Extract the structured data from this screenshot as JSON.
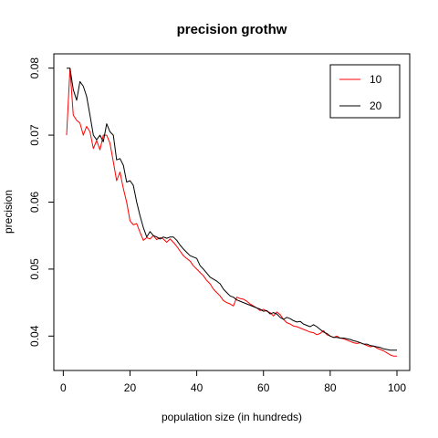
{
  "chart_data": {
    "type": "line",
    "title": "precision grothw",
    "xlabel": "population size (in hundreds)",
    "ylabel": "precision",
    "xlim": [
      1,
      100
    ],
    "ylim": [
      0.0365,
      0.0805
    ],
    "xticks": [
      0,
      20,
      40,
      60,
      80,
      100
    ],
    "xtick_labels": [
      "0",
      "20",
      "40",
      "60",
      "80",
      "100"
    ],
    "yticks": [
      0.04,
      0.05,
      0.06,
      0.07,
      0.08
    ],
    "ytick_labels": [
      "0.04",
      "0.05",
      "0.06",
      "0.07",
      "0.08"
    ],
    "grid": false,
    "legend_position": "top-right",
    "series": [
      {
        "name": "10",
        "color": "#ff0000",
        "x": [
          1,
          2,
          3,
          4,
          5,
          6,
          7,
          8,
          9,
          10,
          11,
          12,
          13,
          14,
          15,
          16,
          17,
          18,
          19,
          20,
          21,
          22,
          23,
          24,
          25,
          26,
          27,
          28,
          29,
          30,
          31,
          32,
          33,
          34,
          35,
          36,
          37,
          38,
          39,
          40,
          41,
          42,
          43,
          44,
          45,
          46,
          47,
          48,
          49,
          50,
          51,
          52,
          53,
          54,
          55,
          56,
          57,
          58,
          59,
          60,
          61,
          62,
          63,
          64,
          65,
          66,
          67,
          68,
          69,
          70,
          71,
          72,
          73,
          74,
          75,
          76,
          77,
          78,
          79,
          80,
          81,
          82,
          83,
          84,
          85,
          86,
          87,
          88,
          89,
          90,
          91,
          92,
          93,
          94,
          95,
          96,
          97,
          98,
          99,
          100
        ],
        "y": [
          0.07,
          0.08,
          0.073,
          0.0722,
          0.0718,
          0.07,
          0.0713,
          0.0705,
          0.068,
          0.0692,
          0.0678,
          0.07,
          0.07,
          0.0688,
          0.066,
          0.0632,
          0.0645,
          0.062,
          0.06,
          0.0572,
          0.0566,
          0.0568,
          0.0555,
          0.0543,
          0.0547,
          0.0545,
          0.055,
          0.0544,
          0.0547,
          0.0545,
          0.054,
          0.0545,
          0.054,
          0.0534,
          0.0527,
          0.052,
          0.0516,
          0.0512,
          0.0505,
          0.05,
          0.0495,
          0.049,
          0.0483,
          0.0478,
          0.047,
          0.0465,
          0.046,
          0.0453,
          0.045,
          0.0448,
          0.0445,
          0.0458,
          0.0456,
          0.0455,
          0.0452,
          0.0448,
          0.0445,
          0.0442,
          0.0438,
          0.044,
          0.0437,
          0.0435,
          0.043,
          0.0436,
          0.0432,
          0.0425,
          0.042,
          0.0418,
          0.0415,
          0.0414,
          0.0412,
          0.041,
          0.0408,
          0.0406,
          0.0405,
          0.0402,
          0.0404,
          0.0408,
          0.0402,
          0.04,
          0.0398,
          0.04,
          0.0397,
          0.0396,
          0.0394,
          0.0392,
          0.039,
          0.0389,
          0.039,
          0.0388,
          0.0386,
          0.0384,
          0.0385,
          0.0382,
          0.038,
          0.0378,
          0.0375,
          0.0372,
          0.037,
          0.037
        ]
      },
      {
        "name": "20",
        "color": "#000000",
        "x": [
          1,
          2,
          3,
          4,
          5,
          6,
          7,
          8,
          9,
          10,
          11,
          12,
          13,
          14,
          15,
          16,
          17,
          18,
          19,
          20,
          21,
          22,
          23,
          24,
          25,
          26,
          27,
          28,
          29,
          30,
          31,
          32,
          33,
          34,
          35,
          36,
          37,
          38,
          39,
          40,
          41,
          42,
          43,
          44,
          45,
          46,
          47,
          48,
          49,
          50,
          51,
          52,
          53,
          54,
          55,
          56,
          57,
          58,
          59,
          60,
          61,
          62,
          63,
          64,
          65,
          66,
          67,
          68,
          69,
          70,
          71,
          72,
          73,
          74,
          75,
          76,
          77,
          78,
          79,
          80,
          81,
          82,
          83,
          84,
          85,
          86,
          87,
          88,
          89,
          90,
          91,
          92,
          93,
          94,
          95,
          96,
          97,
          98,
          99,
          100
        ],
        "y": [
          0.08,
          0.08,
          0.0768,
          0.0752,
          0.078,
          0.0773,
          0.0758,
          0.073,
          0.07,
          0.0693,
          0.07,
          0.069,
          0.0717,
          0.0705,
          0.07,
          0.0663,
          0.0665,
          0.0655,
          0.063,
          0.0632,
          0.0625,
          0.06,
          0.058,
          0.0562,
          0.0548,
          0.0556,
          0.055,
          0.0548,
          0.0545,
          0.0548,
          0.0546,
          0.0548,
          0.0548,
          0.0543,
          0.0536,
          0.053,
          0.0525,
          0.052,
          0.0518,
          0.0516,
          0.0505,
          0.05,
          0.0494,
          0.0488,
          0.0485,
          0.0482,
          0.0478,
          0.047,
          0.0465,
          0.046,
          0.0458,
          0.0454,
          0.0452,
          0.045,
          0.0448,
          0.0446,
          0.0444,
          0.0442,
          0.044,
          0.0437,
          0.0438,
          0.0433,
          0.0435,
          0.0433,
          0.0428,
          0.0425,
          0.0428,
          0.0426,
          0.0423,
          0.0421,
          0.0422,
          0.0418,
          0.0416,
          0.0414,
          0.0417,
          0.0414,
          0.041,
          0.0406,
          0.0404,
          0.04,
          0.0398,
          0.0398,
          0.0397,
          0.0397,
          0.0396,
          0.0395,
          0.0393,
          0.0392,
          0.039,
          0.0388,
          0.0388,
          0.0386,
          0.0385,
          0.0384,
          0.0383,
          0.0381,
          0.038,
          0.0379,
          0.0379,
          0.0379
        ]
      }
    ]
  }
}
